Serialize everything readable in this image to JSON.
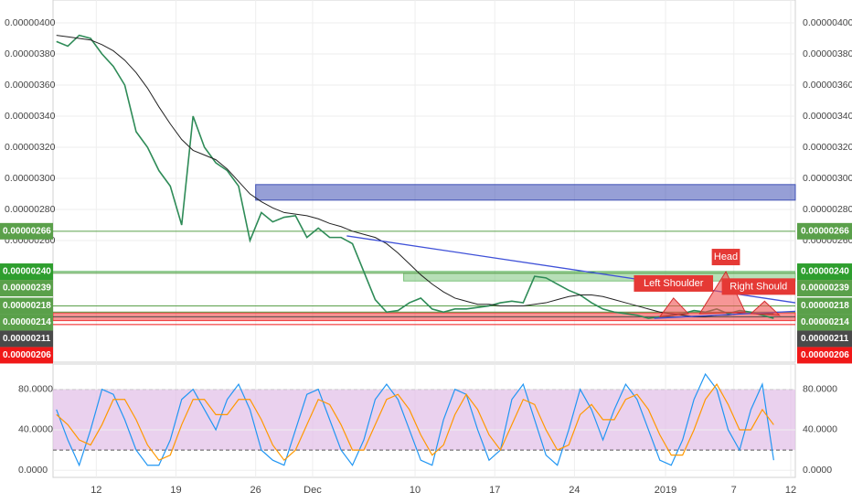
{
  "chart_data": {
    "type": "line",
    "x": [
      8.5,
      9.5,
      10.5,
      11.5,
      12.5,
      13.5,
      14.5,
      15.5,
      16.5,
      17.5,
      18.5,
      19.5,
      20.5,
      21.5,
      22.5,
      23.5,
      24.5,
      25.5,
      26.5,
      27.5,
      28.5,
      29.5,
      30.5,
      31.5,
      32.5,
      33.5,
      34.5,
      35.5,
      36.5,
      37.5,
      38.5,
      39.5,
      40.5,
      41.5,
      42.5,
      43.5,
      44.5,
      45.5,
      46.5,
      47.5,
      48.5,
      49.5,
      50.5,
      51.5,
      52.5,
      53.5,
      54.5,
      55.5,
      56.5,
      57.5,
      58.5,
      59.5,
      60.5,
      61.5,
      62.5,
      63.5,
      64.5,
      65.5,
      66.5,
      67.5,
      68.5,
      69.5,
      70.5,
      71.5
    ],
    "xlim": [
      8.2,
      73.4
    ],
    "xticks": [
      {
        "value": 12,
        "label": "12"
      },
      {
        "value": 19,
        "label": "19"
      },
      {
        "value": 26,
        "label": "26"
      },
      {
        "value": 31,
        "label": "Dec"
      },
      {
        "value": 40,
        "label": "10"
      },
      {
        "value": 47,
        "label": "17"
      },
      {
        "value": 54,
        "label": "24"
      },
      {
        "value": 62,
        "label": "2019"
      },
      {
        "value": 68,
        "label": "7"
      },
      {
        "value": 73,
        "label": "12"
      }
    ],
    "ylim": [
      1.818e-06,
      4.147e-06
    ],
    "yticks": [
      {
        "value": 4e-06,
        "label": "0.00000400"
      },
      {
        "value": 3.8e-06,
        "label": "0.00000380"
      },
      {
        "value": 3.6e-06,
        "label": "0.00000360"
      },
      {
        "value": 3.4e-06,
        "label": "0.00000340"
      },
      {
        "value": 3.2e-06,
        "label": "0.00000320"
      },
      {
        "value": 3e-06,
        "label": "0.00000300"
      },
      {
        "value": 2.8e-06,
        "label": "0.00000280"
      },
      {
        "value": 2.6e-06,
        "label": "0.00000260"
      }
    ],
    "grid": true,
    "series": [
      {
        "color": "#2e8b57",
        "values": [
          3.88e-06,
          3.85e-06,
          3.92e-06,
          3.9e-06,
          3.8e-06,
          3.72e-06,
          3.6e-06,
          3.3e-06,
          3.2e-06,
          3.05e-06,
          2.95e-06,
          2.7e-06,
          3.4e-06,
          3.2e-06,
          3.1e-06,
          3.05e-06,
          2.95e-06,
          2.6e-06,
          2.78e-06,
          2.72e-06,
          2.75e-06,
          2.76e-06,
          2.62e-06,
          2.68e-06,
          2.62e-06,
          2.62e-06,
          2.58e-06,
          2.4e-06,
          2.22e-06,
          2.14e-06,
          2.15e-06,
          2.2e-06,
          2.23e-06,
          2.16e-06,
          2.14e-06,
          2.16e-06,
          2.16e-06,
          2.17e-06,
          2.18e-06,
          2.2e-06,
          2.21e-06,
          2.2e-06,
          2.37e-06,
          2.36e-06,
          2.32e-06,
          2.28e-06,
          2.25e-06,
          2.2e-06,
          2.16e-06,
          2.14e-06,
          2.13e-06,
          2.12e-06,
          2.1e-06,
          2.11e-06,
          2.12e-06,
          2.13e-06,
          2.15e-06,
          2.14e-06,
          2.16e-06,
          2.13e-06,
          2.15e-06,
          2.14e-06,
          2.12e-06,
          2.1e-06
        ]
      },
      {
        "color": "#222222",
        "values": [
          3.92e-06,
          3.91e-06,
          3.9e-06,
          3.89e-06,
          3.86e-06,
          3.82e-06,
          3.76e-06,
          3.68e-06,
          3.58e-06,
          3.46e-06,
          3.35e-06,
          3.25e-06,
          3.18e-06,
          3.15e-06,
          3.12e-06,
          3.06e-06,
          2.98e-06,
          2.9e-06,
          2.85e-06,
          2.81e-06,
          2.78e-06,
          2.77e-06,
          2.76e-06,
          2.74e-06,
          2.71e-06,
          2.69e-06,
          2.66e-06,
          2.64e-06,
          2.62e-06,
          2.58e-06,
          2.52e-06,
          2.45e-06,
          2.38e-06,
          2.32e-06,
          2.27e-06,
          2.23e-06,
          2.21e-06,
          2.19e-06,
          2.19e-06,
          2.18e-06,
          2.18e-06,
          2.18e-06,
          2.19e-06,
          2.2e-06,
          2.22e-06,
          2.24e-06,
          2.25e-06,
          2.25e-06,
          2.24e-06,
          2.22e-06,
          2.2e-06,
          2.18e-06,
          2.16e-06,
          2.14e-06,
          2.13e-06,
          2.12e-06,
          2.11e-06,
          2.11e-06,
          2.12e-06,
          2.12e-06,
          2.13e-06,
          2.13e-06,
          2.13e-06,
          2.13e-06
        ]
      }
    ],
    "levels": [
      {
        "value": 2.66e-06,
        "label": "0.00000266",
        "color": "#5aa04a"
      },
      {
        "value": 2.4e-06,
        "label": "0.00000240",
        "color": "#2e9e2e"
      },
      {
        "value": 2.39e-06,
        "label": "0.00000239",
        "color": "#5aa04a"
      },
      {
        "value": 2.18e-06,
        "label": "0.00000218",
        "color": "#5aa04a"
      },
      {
        "value": 2.14e-06,
        "label": "0.00000214",
        "color": "#5aa04a"
      },
      {
        "value": 2.11e-06,
        "label": "0.00000211",
        "color": "#4a4a4a"
      },
      {
        "value": 2.06e-06,
        "label": "0.00000206",
        "color": "#f01818"
      }
    ],
    "zones": [
      {
        "x": [
          26,
          73.4
        ],
        "y": [
          2.86e-06,
          2.96e-06
        ],
        "color": "#3f51b5"
      },
      {
        "x": [
          39,
          73.4
        ],
        "y": [
          2.34e-06,
          2.39e-06
        ],
        "color": "#7cc47c"
      },
      {
        "x": [
          8.2,
          73.4
        ],
        "y": [
          2.085e-06,
          2.135e-06
        ],
        "color": "#f03c3c"
      }
    ],
    "trendlines": [
      {
        "x": [
          34,
          73.4
        ],
        "y": [
          2.63e-06,
          2.2e-06
        ],
        "color": "#3f51d8"
      },
      {
        "x": [
          61,
          73.4
        ],
        "y": [
          2.1e-06,
          2.145e-06
        ],
        "color": "#3f51d8"
      }
    ],
    "patterns": [
      {
        "label": "Left Shoulder",
        "x": [
          61.5,
          62.7,
          64
        ],
        "y": [
          2.11e-06,
          2.23e-06,
          2.13e-06
        ]
      },
      {
        "label": "Head",
        "x": [
          65,
          67.3,
          69
        ],
        "y": [
          2.13e-06,
          2.4e-06,
          2.14e-06
        ]
      },
      {
        "label": "Right Should",
        "x": [
          69.5,
          70.7,
          72
        ],
        "y": [
          2.13e-06,
          2.21e-06,
          2.12e-06
        ]
      }
    ],
    "oscillator": {
      "ylim": [
        -7,
        105
      ],
      "yticks": [
        {
          "value": 80,
          "label": "80.0000"
        },
        {
          "value": 40,
          "label": "40.0000"
        },
        {
          "value": 0,
          "label": "0.0000"
        }
      ],
      "band": [
        20,
        80
      ],
      "series": [
        {
          "color": "#2196f3",
          "values": [
            60,
            30,
            5,
            40,
            80,
            75,
            50,
            20,
            5,
            5,
            30,
            70,
            80,
            60,
            40,
            70,
            85,
            60,
            20,
            10,
            5,
            40,
            75,
            80,
            50,
            20,
            5,
            30,
            70,
            85,
            70,
            40,
            10,
            5,
            50,
            80,
            75,
            40,
            10,
            20,
            70,
            85,
            50,
            15,
            5,
            40,
            80,
            60,
            30,
            60,
            85,
            70,
            40,
            10,
            5,
            30,
            70,
            95,
            80,
            40,
            20,
            60,
            85,
            10
          ]
        },
        {
          "color": "#ff9800",
          "values": [
            55,
            45,
            30,
            25,
            45,
            70,
            70,
            50,
            25,
            10,
            15,
            45,
            70,
            70,
            55,
            55,
            70,
            70,
            50,
            25,
            10,
            20,
            45,
            70,
            65,
            45,
            20,
            20,
            45,
            70,
            75,
            60,
            35,
            15,
            25,
            55,
            75,
            60,
            35,
            20,
            45,
            70,
            65,
            40,
            20,
            25,
            55,
            65,
            50,
            50,
            70,
            75,
            60,
            35,
            15,
            15,
            40,
            70,
            85,
            65,
            40,
            40,
            60,
            45
          ]
        }
      ]
    }
  }
}
